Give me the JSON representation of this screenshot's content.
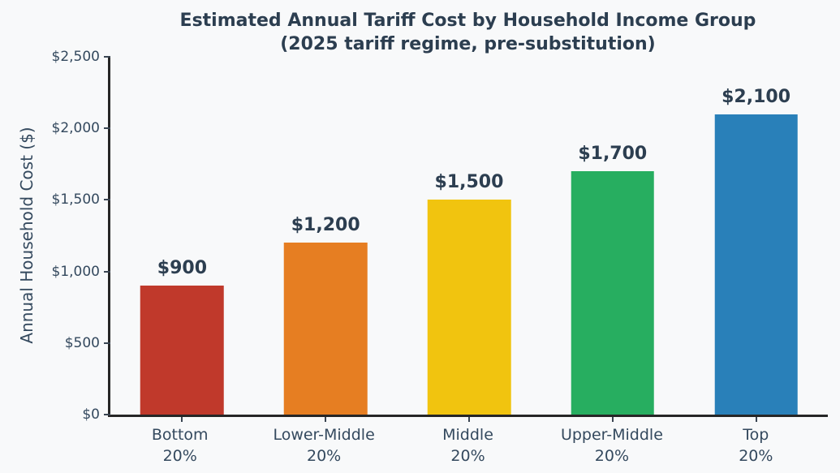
{
  "chart_data": {
    "type": "bar",
    "title_line1": "Estimated Annual Tariff Cost by Household Income Group",
    "title_line2": "(2025 tariff regime, pre-substitution)",
    "xlabel": "",
    "ylabel": "Annual Household Cost ($)",
    "ylim": [
      0,
      2500
    ],
    "grid": false,
    "legend": null,
    "categories": [
      {
        "line1": "Bottom",
        "line2": "20%"
      },
      {
        "line1": "Lower-Middle",
        "line2": "20%"
      },
      {
        "line1": "Middle",
        "line2": "20%"
      },
      {
        "line1": "Upper-Middle",
        "line2": "20%"
      },
      {
        "line1": "Top",
        "line2": "20%"
      }
    ],
    "values": [
      900,
      1200,
      1500,
      1700,
      2100
    ],
    "value_labels": [
      "$900",
      "$1,200",
      "$1,500",
      "$1,700",
      "$2,100"
    ],
    "bar_colors": [
      "#c0392b",
      "#e67e22",
      "#f1c40f",
      "#27ae60",
      "#2980b9"
    ],
    "yticks": [
      {
        "value": 0,
        "label": "$0"
      },
      {
        "value": 500,
        "label": "$500"
      },
      {
        "value": 1000,
        "label": "$1,000"
      },
      {
        "value": 1500,
        "label": "$1,500"
      },
      {
        "value": 2000,
        "label": "$2,000"
      },
      {
        "value": 2500,
        "label": "$2,500"
      }
    ]
  },
  "palette": {
    "background": "#f8f9fa",
    "title_text": "#2c3e50",
    "tick_text": "#34495e",
    "axis_spine": "#262626"
  }
}
